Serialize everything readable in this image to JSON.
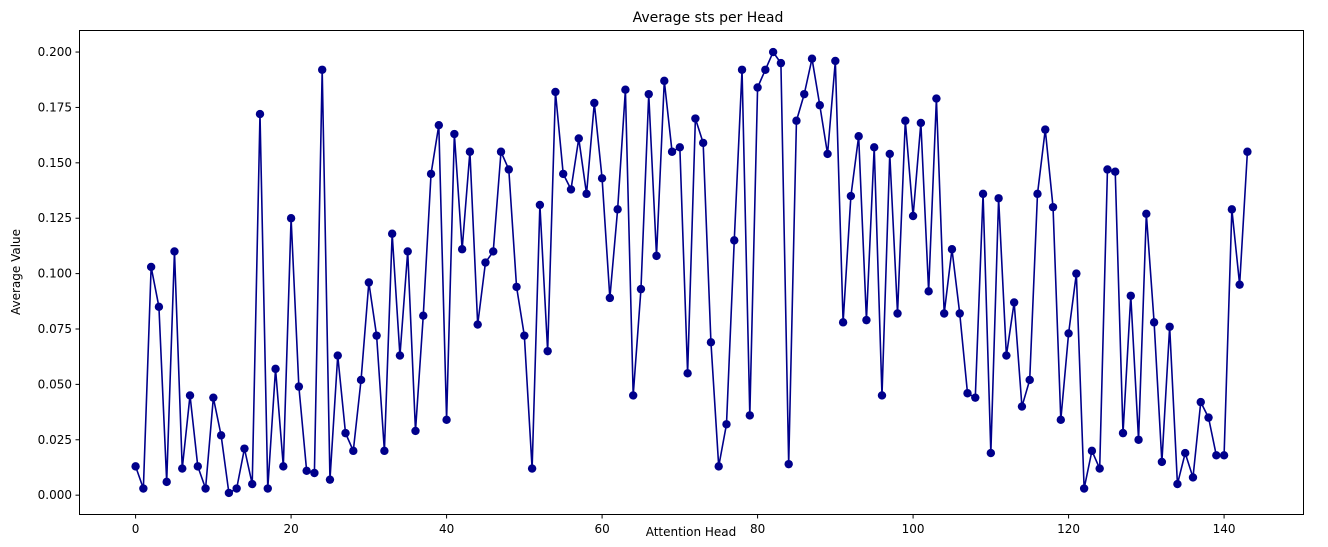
{
  "chart_data": {
    "type": "line",
    "title": "Average sts per Head",
    "xlabel": "Attention Head",
    "ylabel": "Average Value",
    "xlim": [
      -7.15,
      150.15
    ],
    "ylim": [
      -0.0085,
      0.2095
    ],
    "xticks": [
      0,
      20,
      40,
      60,
      80,
      100,
      120,
      140
    ],
    "xtick_labels": [
      "0",
      "20",
      "40",
      "60",
      "80",
      "100",
      "120",
      "140"
    ],
    "yticks": [
      0.0,
      0.025,
      0.05,
      0.075,
      0.1,
      0.125,
      0.15,
      0.175,
      0.2
    ],
    "ytick_labels": [
      "0.000",
      "0.025",
      "0.050",
      "0.075",
      "0.100",
      "0.125",
      "0.150",
      "0.175",
      "0.200"
    ],
    "grid": false,
    "color": "#00008b",
    "marker": "circle",
    "series": [
      {
        "values": [
          0.013,
          0.003,
          0.103,
          0.085,
          0.006,
          0.11,
          0.012,
          0.045,
          0.013,
          0.003,
          0.044,
          0.027,
          0.001,
          0.003,
          0.021,
          0.005,
          0.172,
          0.003,
          0.057,
          0.013,
          0.125,
          0.049,
          0.011,
          0.01,
          0.192,
          0.007,
          0.063,
          0.028,
          0.02,
          0.052,
          0.096,
          0.072,
          0.02,
          0.118,
          0.063,
          0.11,
          0.029,
          0.081,
          0.145,
          0.167,
          0.034,
          0.163,
          0.111,
          0.155,
          0.077,
          0.105,
          0.11,
          0.155,
          0.147,
          0.094,
          0.072,
          0.012,
          0.131,
          0.065,
          0.182,
          0.145,
          0.138,
          0.161,
          0.136,
          0.177,
          0.143,
          0.089,
          0.129,
          0.183,
          0.045,
          0.093,
          0.181,
          0.108,
          0.187,
          0.155,
          0.157,
          0.055,
          0.17,
          0.159,
          0.069,
          0.013,
          0.032,
          0.115,
          0.192,
          0.036,
          0.184,
          0.192,
          0.2,
          0.195,
          0.014,
          0.169,
          0.181,
          0.197,
          0.176,
          0.154,
          0.196,
          0.078,
          0.135,
          0.162,
          0.079,
          0.157,
          0.045,
          0.154,
          0.082,
          0.169,
          0.126,
          0.168,
          0.092,
          0.179,
          0.082,
          0.111,
          0.082,
          0.046,
          0.044,
          0.136,
          0.019,
          0.134,
          0.063,
          0.087,
          0.04,
          0.052,
          0.136,
          0.165,
          0.13,
          0.034,
          0.073,
          0.1,
          0.003,
          0.02,
          0.012,
          0.147,
          0.146,
          0.028,
          0.09,
          0.025,
          0.127,
          0.078,
          0.015,
          0.076,
          0.005,
          0.019,
          0.008,
          0.042,
          0.035,
          0.018,
          0.018,
          0.129,
          0.095,
          0.155
        ]
      }
    ]
  }
}
